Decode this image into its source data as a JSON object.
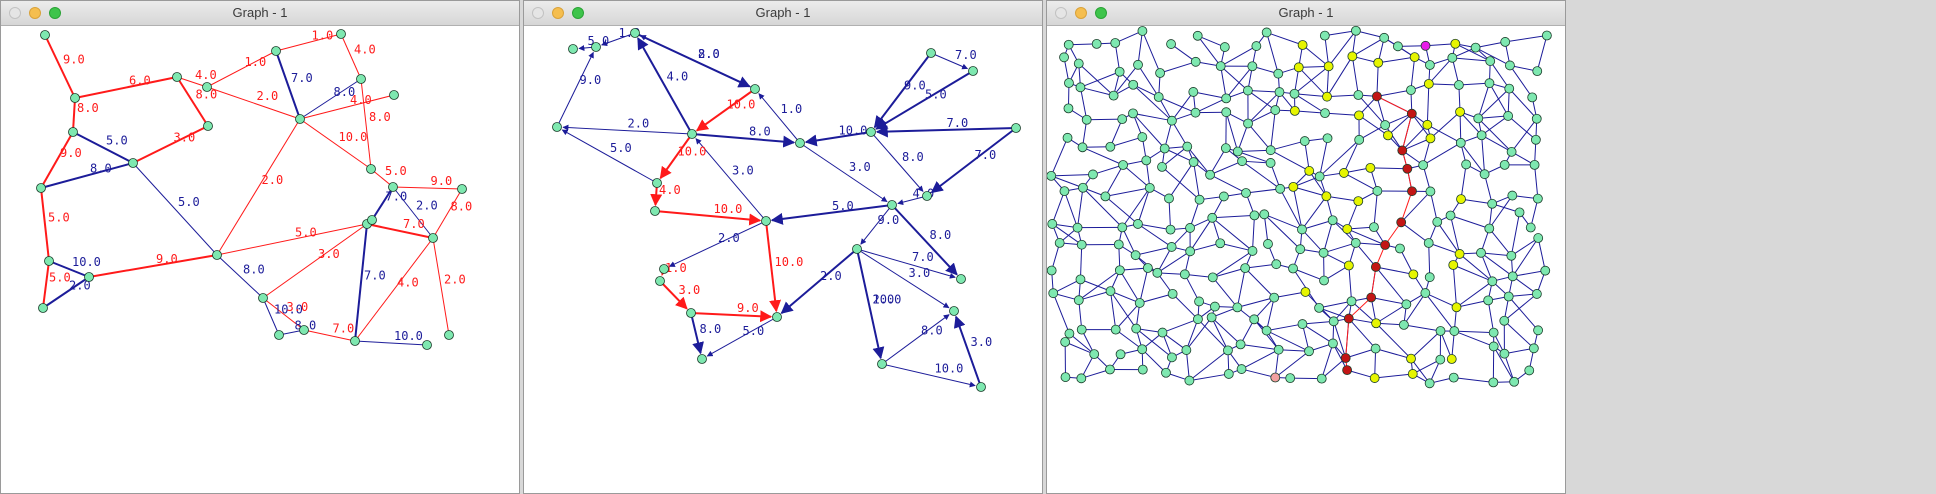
{
  "windows": [
    {
      "title": "Graph - 1"
    },
    {
      "title": "Graph - 1"
    },
    {
      "title": "Graph - 1"
    }
  ],
  "colors": {
    "node": "#7ee8b0",
    "node_stroke": "#1a3d2a",
    "node_yellow": "#e6f500",
    "node_red": "#c21515",
    "node_magenta": "#e81ee8",
    "node_pink": "#f2a0a0",
    "edge_blue": "#1c1c99",
    "edge_red": "#ff1a1a"
  },
  "graph1": {
    "edge_labels": [
      "9.0",
      "6.0",
      "8.0",
      "4.0",
      "1.0",
      "1.0",
      "7.0",
      "8.0",
      "4.0",
      "2.0",
      "3.0",
      "8.0",
      "5.0",
      "9.0",
      "8.0",
      "5.0",
      "10.0",
      "4.0",
      "8.0",
      "5.0",
      "9.0",
      "2.0",
      "8.0",
      "7.0",
      "5.0",
      "2.0",
      "10.0",
      "9.0",
      "5.0",
      "7.0",
      "8.0",
      "10.0",
      "3.0",
      "7.0",
      "4.0",
      "2.0",
      "10.0",
      "8.0",
      "7.0",
      "2.0",
      "5.0",
      "3.0"
    ]
  },
  "graph2": {
    "edge_labels": [
      "9.0",
      "1.0",
      "5.0",
      "8.0",
      "2.0",
      "4.0",
      "8.0",
      "10.0",
      "1.0",
      "2.0",
      "5.0",
      "10.0",
      "9.0",
      "5.0",
      "7.0",
      "7.0",
      "8.0",
      "3.0",
      "10.0",
      "4.0",
      "3.0",
      "10.0",
      "4.0",
      "5.0",
      "8.0",
      "2.0",
      "10.0",
      "1.0",
      "3.0",
      "9.0",
      "5.0",
      "8.0",
      "7.0",
      "3.0",
      "10.0",
      "8.0",
      "3.0",
      "10.0",
      "9.0",
      "2.0",
      "7.0",
      "2.0",
      "8.0",
      "10.0",
      "1.0",
      "2.0",
      "8.0",
      "3.0"
    ]
  }
}
